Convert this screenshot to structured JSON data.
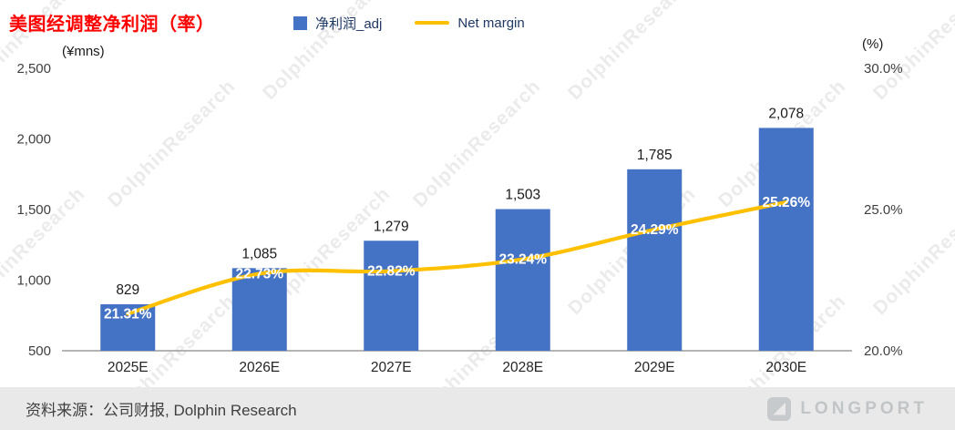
{
  "header": {
    "title": "美图经调整净利润（率）"
  },
  "legend": {
    "items": [
      {
        "label": "净利润_adj",
        "color": "#4472C4",
        "type": "bar"
      },
      {
        "label": "Net margin",
        "color": "#FFC000",
        "type": "line"
      }
    ]
  },
  "axes": {
    "left_unit": "(¥mns)",
    "right_unit": "(%)"
  },
  "watermark": "DolphinResearch",
  "footer": {
    "source": "资料来源：公司财报, Dolphin Research",
    "logo_text": "LONGPORT"
  },
  "chart_data": {
    "type": "bar+line combo",
    "categories": [
      "2025E",
      "2026E",
      "2027E",
      "2028E",
      "2029E",
      "2030E"
    ],
    "series": [
      {
        "name": "净利润_adj",
        "type": "bar",
        "axis": "left",
        "color": "#4472C4",
        "values": [
          829,
          1085,
          1279,
          1503,
          1785,
          2078
        ]
      },
      {
        "name": "Net margin",
        "type": "line",
        "axis": "right",
        "color": "#FFC000",
        "values": [
          21.31,
          22.73,
          22.82,
          23.24,
          24.29,
          25.26
        ]
      }
    ],
    "left_axis": {
      "min": 500,
      "max": 2500,
      "ticks": [
        2500,
        2000,
        1500,
        1000,
        500
      ],
      "label": "(¥mns)"
    },
    "right_axis": {
      "min": 20,
      "max": 30,
      "ticks": [
        30,
        25,
        20
      ],
      "label": "(%)"
    },
    "grid": false,
    "legend_position": "top"
  }
}
